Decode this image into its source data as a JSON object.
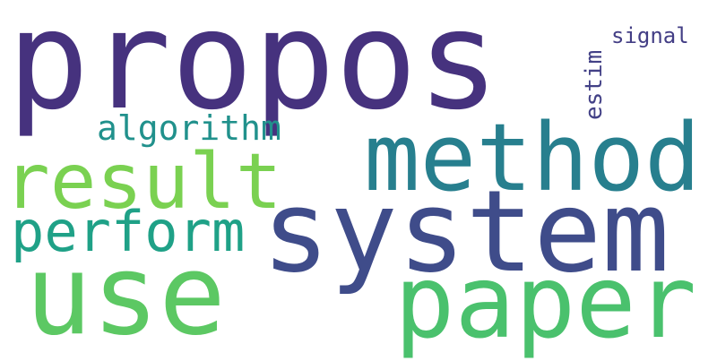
{
  "words": [
    {
      "text": "propos",
      "color": "#46327e"
    },
    {
      "text": "system",
      "color": "#3f4c8a"
    },
    {
      "text": "method",
      "color": "#277f8e"
    },
    {
      "text": "use",
      "color": "#5cc863"
    },
    {
      "text": "paper",
      "color": "#4ac16d"
    },
    {
      "text": "result",
      "color": "#7ad151"
    },
    {
      "text": "perform",
      "color": "#1fa187"
    },
    {
      "text": "algorithm",
      "color": "#21918c"
    },
    {
      "text": "signal",
      "color": "#433e85"
    },
    {
      "text": "estim",
      "color": "#424086"
    }
  ]
}
